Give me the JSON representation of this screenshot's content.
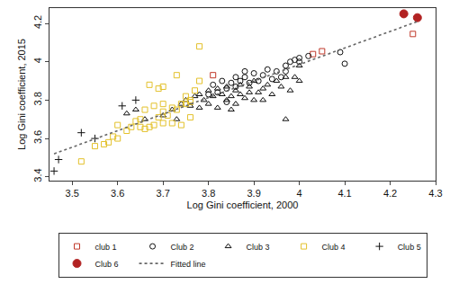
{
  "chart_data": {
    "type": "scatter",
    "x_label": "Log Gini coefficient, 2000",
    "y_label": "Log Gini coefficient, 2015",
    "xlim": [
      3.45,
      4.3
    ],
    "xticks": [
      3.5,
      3.6,
      3.7,
      3.8,
      3.9,
      4,
      4.1,
      4.2,
      4.3
    ],
    "ylim": [
      3.38,
      4.28
    ],
    "yticks": [
      3.4,
      3.6,
      3.8,
      4,
      4.2
    ],
    "grid": false,
    "legend": "bottom",
    "series": [
      {
        "name": "club 1",
        "type": "scatter",
        "marker": "square-open",
        "color": "#c0392b",
        "x": [
          4.25,
          4.05,
          4.03,
          3.81
        ],
        "values": [
          4.145,
          4.055,
          4.04,
          3.93
        ]
      },
      {
        "name": "Club 2",
        "type": "scatter",
        "marker": "circle-open",
        "color": "#111111",
        "x": [
          3.81,
          3.82,
          3.83,
          3.84,
          3.85,
          3.86,
          3.86,
          3.87,
          3.88,
          3.88,
          3.89,
          3.9,
          3.91,
          3.92,
          3.93,
          3.95,
          3.96,
          3.97,
          3.98,
          3.99,
          4.0,
          4.0,
          4.02,
          4.09,
          4.1,
          3.94,
          3.97,
          3.84,
          3.8
        ],
        "values": [
          3.88,
          3.84,
          3.9,
          3.86,
          3.89,
          3.92,
          3.87,
          3.9,
          3.95,
          3.92,
          3.89,
          3.94,
          3.9,
          3.93,
          3.96,
          3.95,
          3.92,
          3.98,
          4.0,
          4.01,
          4.0,
          4.02,
          4.03,
          4.05,
          3.99,
          3.91,
          3.95,
          3.79,
          3.83
        ]
      },
      {
        "name": "Club 3",
        "type": "scatter",
        "marker": "triangle-up-open",
        "color": "#111111",
        "x": [
          3.62,
          3.64,
          3.66,
          3.7,
          3.72,
          3.73,
          3.74,
          3.75,
          3.76,
          3.77,
          3.78,
          3.78,
          3.79,
          3.8,
          3.8,
          3.81,
          3.82,
          3.82,
          3.83,
          3.84,
          3.84,
          3.85,
          3.86,
          3.86,
          3.87,
          3.87,
          3.88,
          3.89,
          3.89,
          3.9,
          3.9,
          3.91,
          3.92,
          3.92,
          3.93,
          3.94,
          3.95,
          3.96,
          3.97,
          3.98,
          3.99,
          4.0,
          3.97,
          4.0,
          3.85
        ],
        "values": [
          3.73,
          3.75,
          3.7,
          3.72,
          3.75,
          3.7,
          3.78,
          3.8,
          3.77,
          3.82,
          3.76,
          3.83,
          3.8,
          3.85,
          3.78,
          3.82,
          3.86,
          3.76,
          3.83,
          3.8,
          3.87,
          3.82,
          3.85,
          3.78,
          3.83,
          3.88,
          3.81,
          3.84,
          3.87,
          3.8,
          3.9,
          3.84,
          3.86,
          3.8,
          3.88,
          3.83,
          3.9,
          3.87,
          3.92,
          3.85,
          3.92,
          3.9,
          3.7,
          3.98,
          3.75
        ]
      },
      {
        "name": "Club 4",
        "type": "scatter",
        "marker": "square-open",
        "color": "#e3c12b",
        "x": [
          3.52,
          3.55,
          3.57,
          3.58,
          3.59,
          3.6,
          3.62,
          3.6,
          3.63,
          3.64,
          3.65,
          3.66,
          3.67,
          3.65,
          3.68,
          3.7,
          3.69,
          3.7,
          3.71,
          3.72,
          3.73,
          3.74,
          3.75,
          3.76,
          3.77,
          3.78,
          3.76,
          3.69,
          3.67,
          3.7,
          3.73,
          3.78,
          3.76,
          3.74,
          3.72,
          3.75,
          3.68,
          3.66,
          3.7
        ],
        "values": [
          3.48,
          3.56,
          3.57,
          3.58,
          3.61,
          3.6,
          3.64,
          3.67,
          3.66,
          3.69,
          3.66,
          3.65,
          3.66,
          3.7,
          3.67,
          3.68,
          3.71,
          3.74,
          3.72,
          3.76,
          3.75,
          3.78,
          3.78,
          3.8,
          3.85,
          3.9,
          3.71,
          3.86,
          3.88,
          3.87,
          3.93,
          4.08,
          3.79,
          3.67,
          3.68,
          3.82,
          3.77,
          3.75,
          3.78
        ]
      },
      {
        "name": "Club 5",
        "type": "scatter",
        "marker": "cross-thin-open",
        "color": "#111111",
        "x": [
          3.46,
          3.47,
          3.52,
          3.55,
          3.61,
          3.64
        ],
        "values": [
          3.43,
          3.49,
          3.63,
          3.6,
          3.77,
          3.8
        ]
      },
      {
        "name": "Club 6",
        "type": "scatter",
        "marker": "circle",
        "color": "#b22222",
        "x": [
          4.23,
          4.26
        ],
        "values": [
          4.25,
          4.23
        ]
      },
      {
        "name": "Fitted line",
        "type": "line",
        "line_style": "dot",
        "color": "#666666",
        "x": [
          3.46,
          4.26
        ],
        "values": [
          3.52,
          4.21
        ]
      }
    ]
  }
}
